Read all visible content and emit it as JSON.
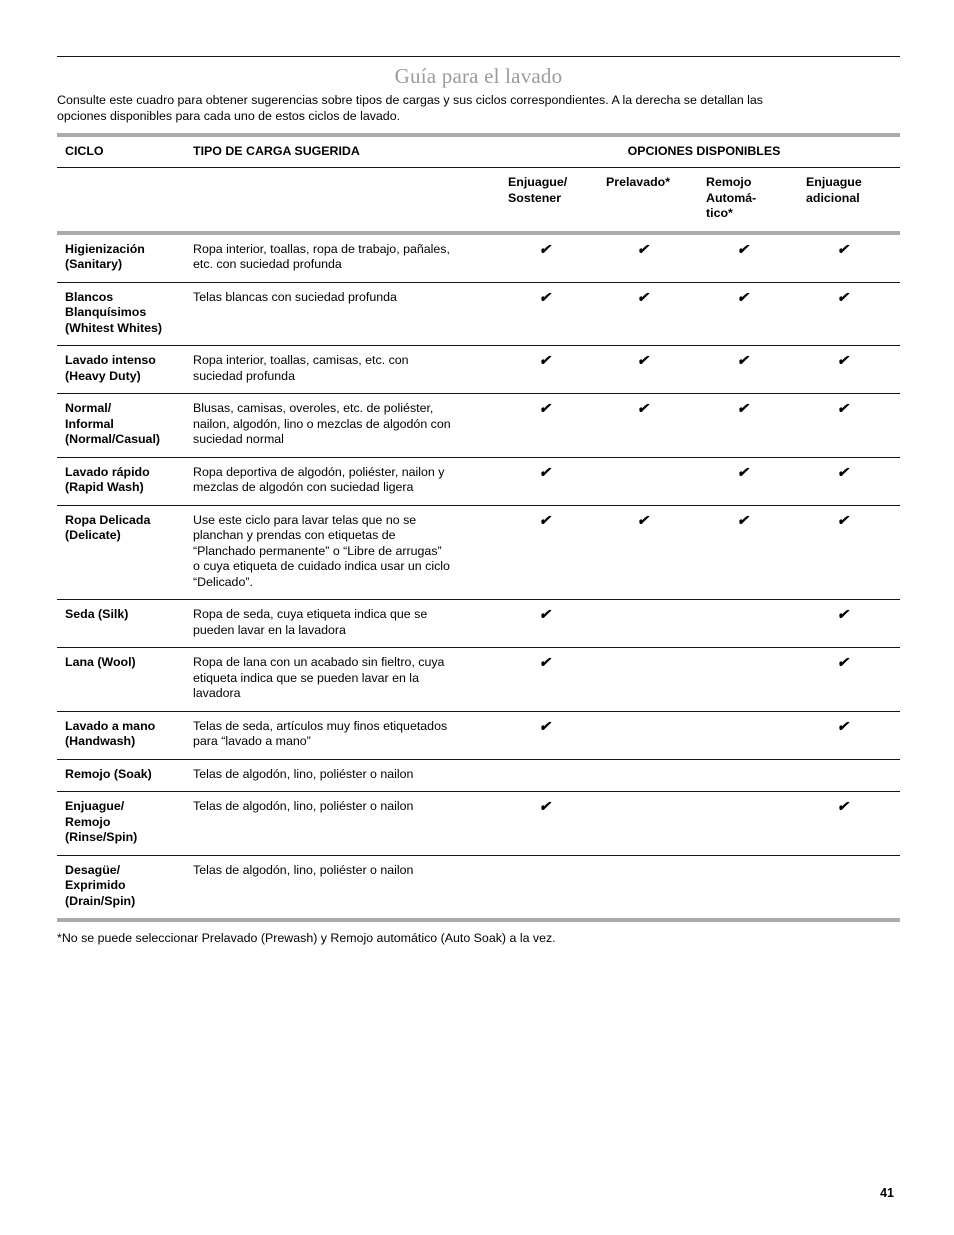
{
  "page": {
    "title": "Guía para el lavado",
    "intro": "Consulte este cuadro para obtener sugerencias sobre tipos de cargas y sus ciclos correspondientes. A la derecha se detallan las\nopciones disponibles para cada uno de estos ciclos de lavado.",
    "footnote": "*No se puede seleccionar Prelavado (Prewash) y Remojo automático (Auto Soak) a la vez.",
    "page_number": "41"
  },
  "colors": {
    "title_gray": "#9b9b9b",
    "bar_gray": "#ababab",
    "line_black": "#151515",
    "text_black": "#000000"
  },
  "table": {
    "col_ciclo": "CICLO",
    "col_tipo": "TIPO DE CARGA SUGERIDA",
    "col_opciones": "OPCIONES DISPONIBLES",
    "check_glyph": "✔",
    "check_icon_name": "check-icon",
    "option_headers": [
      "Enjuague/\nSostener",
      "Prelavado*",
      "Remojo\nAutomá-\ntico*",
      "Enjuague\nadicional"
    ],
    "rows": [
      {
        "ciclo": "Higienización\n(Sanitary)",
        "tipo": "Ropa interior, toallas, ropa de trabajo, pañales,\netc. con suciedad profunda",
        "options": [
          true,
          true,
          true,
          true
        ]
      },
      {
        "ciclo": "Blancos\nBlanquísimos\n(Whitest Whites)",
        "tipo": "Telas blancas con suciedad profunda",
        "options": [
          true,
          true,
          true,
          true
        ]
      },
      {
        "ciclo": "Lavado intenso\n(Heavy Duty)",
        "tipo": "Ropa interior, toallas, camisas, etc. con\nsuciedad profunda",
        "options": [
          true,
          true,
          true,
          true
        ]
      },
      {
        "ciclo": "Normal/\nInformal\n(Normal/Casual)",
        "tipo": "Blusas, camisas, overoles, etc. de poliéster,\nnailon, algodón, lino o mezclas de algodón con\nsuciedad normal",
        "options": [
          true,
          true,
          true,
          true
        ]
      },
      {
        "ciclo": "Lavado rápido\n(Rapid Wash)",
        "tipo": "Ropa deportiva de algodón, poliéster, nailon y\nmezclas de algodón con suciedad ligera",
        "options": [
          true,
          false,
          true,
          true
        ]
      },
      {
        "ciclo": "Ropa Delicada\n(Delicate)",
        "tipo": "Use este ciclo para lavar telas que no se\nplanchan y prendas con etiquetas de\n“Planchado permanente” o “Libre de arrugas”\no cuya etiqueta de cuidado indica usar un ciclo\n“Delicado”.",
        "options": [
          true,
          true,
          true,
          true
        ]
      },
      {
        "ciclo": "Seda (Silk)",
        "tipo": "Ropa de seda, cuya etiqueta indica que se\npueden lavar en la lavadora",
        "options": [
          true,
          false,
          false,
          true
        ]
      },
      {
        "ciclo": "Lana (Wool)",
        "tipo": "Ropa de lana con un acabado sin fieltro, cuya\netiqueta indica que se pueden lavar en la\nlavadora",
        "options": [
          true,
          false,
          false,
          true
        ]
      },
      {
        "ciclo": "Lavado a mano\n(Handwash)",
        "tipo": "Telas de seda, artículos muy finos etiquetados\npara “lavado a mano”",
        "options": [
          true,
          false,
          false,
          true
        ]
      },
      {
        "ciclo": "Remojo (Soak)",
        "tipo": "Telas de algodón, lino, poliéster o nailon",
        "options": [
          false,
          false,
          false,
          false
        ]
      },
      {
        "ciclo": "Enjuague/\nRemojo\n(Rinse/Spin)",
        "tipo": "Telas de algodón, lino, poliéster o nailon",
        "options": [
          true,
          false,
          false,
          true
        ]
      },
      {
        "ciclo": "Desagüe/\nExprimido\n(Drain/Spin)",
        "tipo": "Telas de algodón, lino, poliéster o nailon",
        "options": [
          false,
          false,
          false,
          false
        ]
      }
    ]
  }
}
